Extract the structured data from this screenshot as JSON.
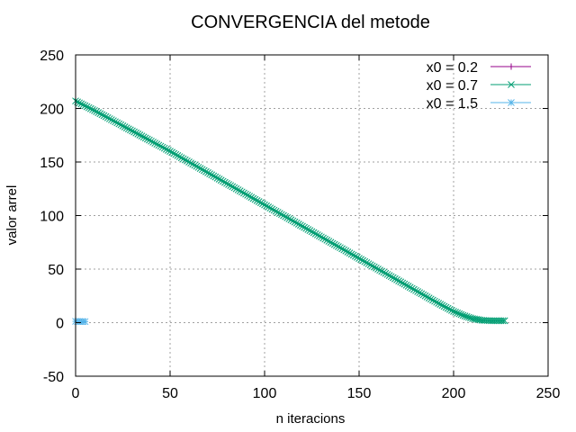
{
  "chart_data": {
    "type": "line",
    "title": "CONVERGENCIA del metode",
    "xlabel": "n iteracions",
    "ylabel": "valor arrel",
    "xlim": [
      0,
      250
    ],
    "ylim": [
      -50,
      250
    ],
    "xticks": [
      0,
      50,
      100,
      150,
      200,
      250
    ],
    "yticks": [
      -50,
      0,
      50,
      100,
      150,
      200,
      250
    ],
    "grid": true,
    "legend_position": "top-right",
    "series": [
      {
        "name": "x0 = 0.2",
        "color": "#94008a",
        "marker": "plus",
        "x": [],
        "y": []
      },
      {
        "name": "x0 = 0.7",
        "color": "#009e73",
        "marker": "cross",
        "x": [
          0,
          10,
          20,
          30,
          40,
          50,
          60,
          70,
          80,
          90,
          100,
          110,
          120,
          130,
          140,
          150,
          160,
          170,
          180,
          190,
          200,
          205,
          210,
          215,
          220,
          227
        ],
        "y": [
          207,
          198,
          188.5,
          179,
          169.5,
          160,
          150,
          140,
          130,
          120,
          110,
          100,
          90,
          80,
          70,
          60,
          50,
          40,
          30,
          20,
          10.5,
          6.8,
          3.8,
          2.2,
          1.8,
          1.8
        ]
      },
      {
        "name": "x0 = 1.5",
        "color": "#56b4e9",
        "marker": "star",
        "x": [
          0,
          1,
          2,
          3,
          4,
          5
        ],
        "y": [
          1.2,
          1.1,
          1.1,
          1.0,
          1.0,
          1.0
        ]
      }
    ]
  }
}
